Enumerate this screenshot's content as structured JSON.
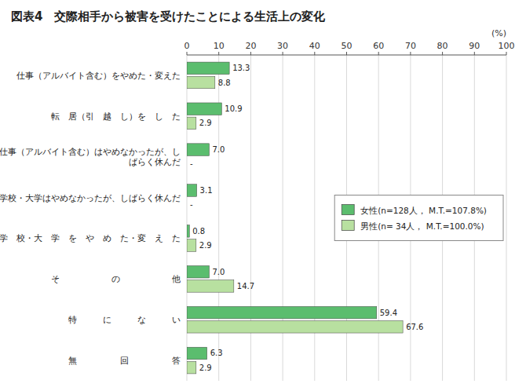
{
  "chart_data": {
    "type": "bar",
    "orientation": "horizontal",
    "title": "図表4　交際相手から被害を受けたことによる生活上の変化",
    "xlabel": "(%)",
    "categories": [
      "仕事（アルバイト含む）をやめた・変えた",
      "転　居（引　越　し）を　し　た",
      "仕事（アルバイト含む）はやめなかったが、し\nばらく休んだ",
      "学校・大学はやめなかったが、しばらく休んだ",
      "学　校・大　学　を　や　め　た・変　え　た",
      "そ　　　　　　の　　　　　　他",
      "特　　　に　　　な　　　い",
      "無　　　　　回　　　　　答"
    ],
    "series": [
      {
        "name": "女性(n=128人，  M.T.=107.8%)",
        "color": "#5BBD6E",
        "values": [
          13.3,
          10.9,
          7.0,
          3.1,
          0.8,
          7.0,
          59.4,
          6.3
        ],
        "value_labels": [
          "13.3",
          "10.9",
          "7.0",
          "3.1",
          "0.8",
          "7.0",
          "59.4",
          "6.3"
        ]
      },
      {
        "name": "男性(n= 34人，  M.T.=100.0%)",
        "color": "#B8E0A0",
        "values": [
          8.8,
          2.9,
          0.0,
          0.0,
          2.9,
          14.7,
          67.6,
          2.9
        ],
        "value_labels": [
          "8.8",
          "2.9",
          "-",
          "-",
          "2.9",
          "14.7",
          "67.6",
          "2.9"
        ]
      }
    ],
    "xlim": [
      0,
      100
    ],
    "xticks": [
      0,
      10,
      20,
      30,
      40,
      50,
      60,
      70,
      80,
      90,
      100
    ],
    "grid": true,
    "legend": "right",
    "data_labels": true
  }
}
